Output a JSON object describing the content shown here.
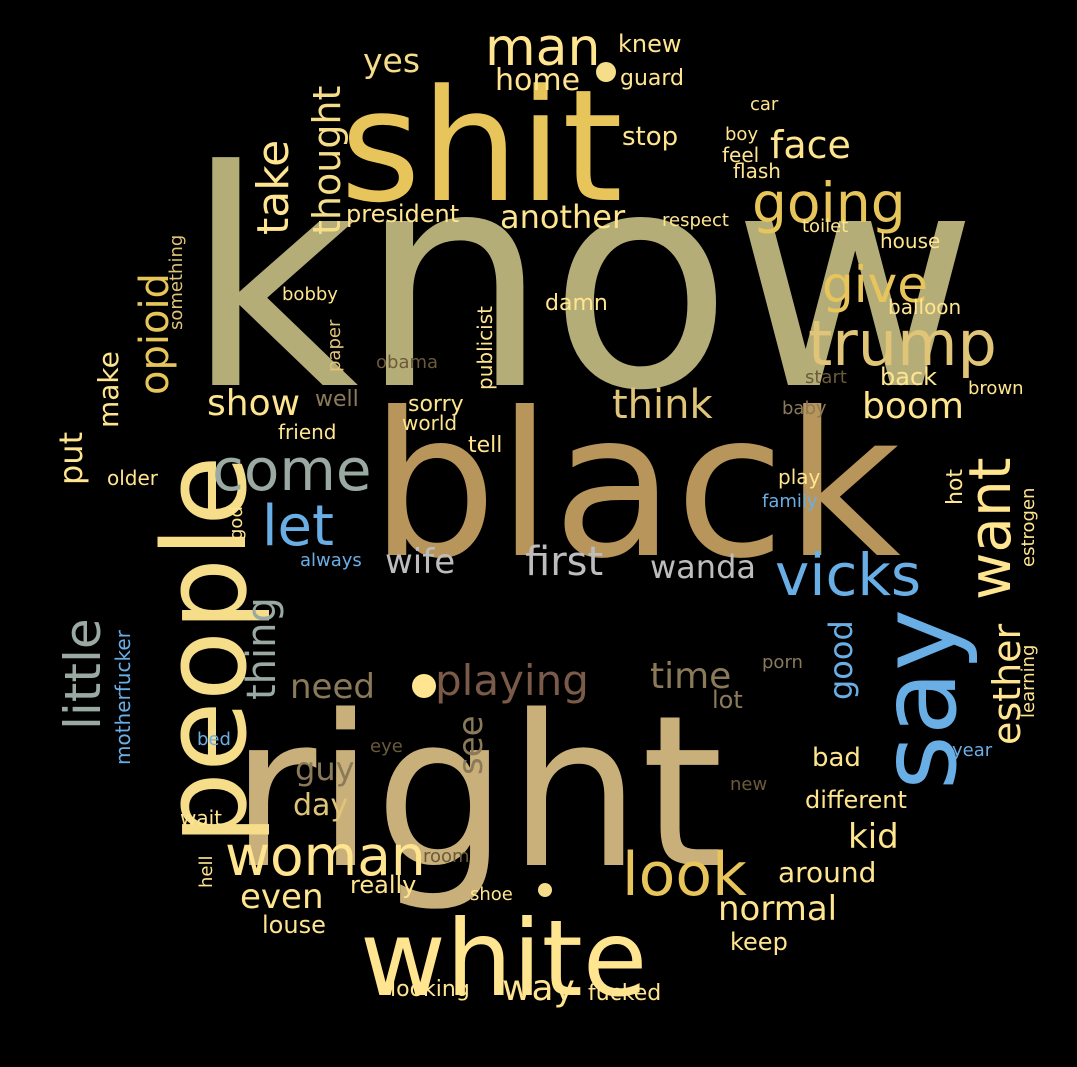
{
  "colors": {
    "background": "#000000",
    "olive": "#b5ad78",
    "gold": "#e8c55a",
    "tan": "#c9b07a",
    "brown": "#b8955a",
    "cream": "#ffe58f",
    "lightyellow": "#f5dd8a",
    "blue": "#6aaee6",
    "slate": "#9aaaa2",
    "grey": "#bdbdbd",
    "rust": "#7a5a48",
    "drab": "#8a7a5a",
    "dim": "#6b5a3a",
    "mid": "#e0c478"
  },
  "words": [
    "know",
    "right",
    "black",
    "shit",
    "people",
    "white",
    "say",
    "trump",
    "vicks",
    "want",
    "come",
    "let",
    "woman",
    "look",
    "going",
    "man",
    "give",
    "little",
    "opioid",
    "take",
    "thought",
    "face",
    "another",
    "president",
    "home",
    "yes",
    "knew",
    "guard",
    "car",
    "boy",
    "feel",
    "flash",
    "stop",
    "respect",
    "toilet",
    "house",
    "balloon",
    "bobby",
    "something",
    "paper",
    "publicist",
    "damn",
    "obama",
    "start",
    "back",
    "brown",
    "show",
    "boom",
    "well",
    "sorry",
    "think",
    "friend",
    "world",
    "tell",
    "baby",
    "make",
    "put",
    "older",
    "god",
    "play",
    "hot",
    "estrogen",
    "family",
    "always",
    "wife",
    "first",
    "wanda",
    "thing",
    "esther",
    "good",
    "need",
    "playing",
    "time",
    "lot",
    "porn",
    "learning",
    "see",
    "motherfucker",
    "bed",
    "eye",
    "year",
    "guy",
    "day",
    "bad",
    "new",
    "different",
    "wait",
    "kid",
    "hell",
    "room",
    "around",
    "even",
    "really",
    "normal",
    "shoe",
    "louse",
    "keep",
    "way",
    "looking",
    "fucked"
  ]
}
